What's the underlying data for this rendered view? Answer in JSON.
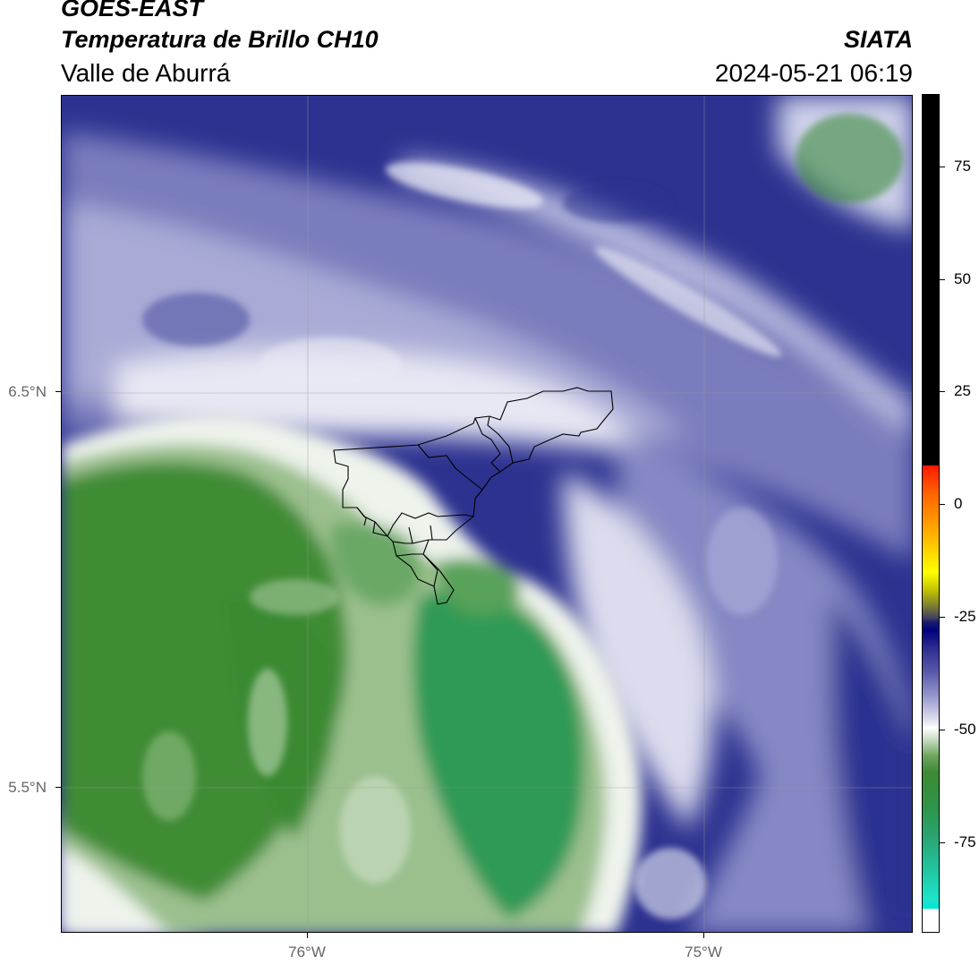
{
  "header": {
    "satellite": "GOES-EAST",
    "product": "Temperatura de Brillo CH10",
    "region": "Valle de Aburrá",
    "institution": "SIATA",
    "datetime": "2024-05-21 06:19"
  },
  "map": {
    "lat_ticks": [
      {
        "label": "6.5°N",
        "value": 6.5
      },
      {
        "label": "5.5°N",
        "value": 5.5
      }
    ],
    "lon_ticks": [
      {
        "label": "76°W",
        "value": -76
      },
      {
        "label": "75°W",
        "value": -75
      }
    ],
    "gridlines": true,
    "outline": "Valle de Aburrá municipalities",
    "colors": {
      "cold_cloud": "#1f2388",
      "mid_cloud": "#8d90c6",
      "thin_cloud": "#f3f3fa",
      "clear_warm": "#3e8a34",
      "clear_cool": "#2fa05e"
    }
  },
  "colorbar": {
    "ticks": [
      "75",
      "50",
      "25",
      "0",
      "-25",
      "-50",
      "-75"
    ],
    "tick_values": [
      75,
      50,
      25,
      0,
      -25,
      -50,
      -75
    ],
    "range": [
      -95,
      91
    ],
    "unit_hint": "°C"
  }
}
